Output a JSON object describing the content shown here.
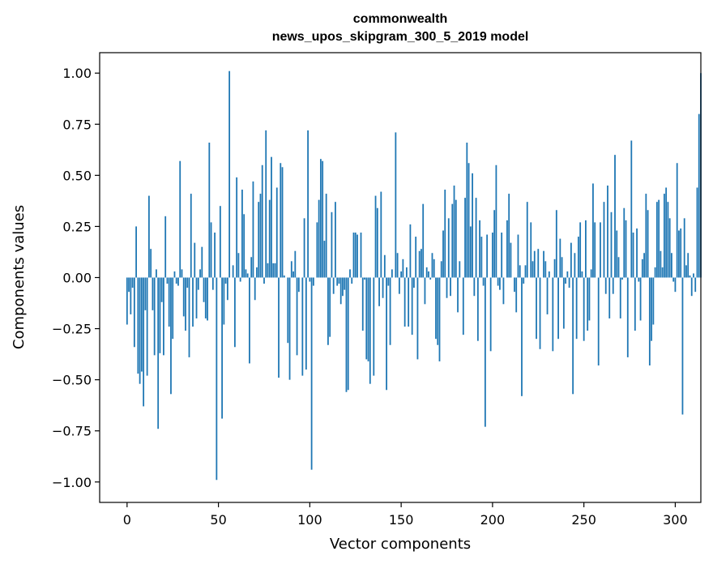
{
  "chart_data": {
    "type": "bar",
    "title_line1": "commonwealth",
    "title_line2": "news_upos_skipgram_300_5_2019 model",
    "xlabel": "Vector components",
    "ylabel": "Components values",
    "xlim": [
      -15,
      314
    ],
    "ylim": [
      -1.1,
      1.1
    ],
    "xticks": [
      0,
      50,
      100,
      150,
      200,
      250,
      300
    ],
    "yticks": [
      -1.0,
      -0.75,
      -0.5,
      -0.25,
      0.0,
      0.25,
      0.5,
      0.75,
      1.0
    ],
    "ytick_labels": [
      "−1.00",
      "−0.75",
      "−0.50",
      "−0.25",
      "0.00",
      "0.25",
      "0.50",
      "0.75",
      "1.00"
    ],
    "xtick_labels": [
      "0",
      "50",
      "100",
      "150",
      "200",
      "250",
      "300"
    ],
    "bar_color": "#1f77b4",
    "values": [
      -0.23,
      -0.07,
      -0.18,
      -0.05,
      -0.34,
      0.25,
      -0.47,
      -0.52,
      -0.46,
      -0.63,
      -0.16,
      -0.48,
      0.4,
      0.14,
      -0.16,
      -0.38,
      0.04,
      -0.74,
      -0.37,
      -0.12,
      -0.38,
      0.3,
      -0.03,
      -0.24,
      -0.57,
      -0.3,
      0.03,
      -0.03,
      -0.04,
      0.57,
      0.04,
      -0.19,
      -0.26,
      -0.05,
      -0.39,
      0.41,
      -0.24,
      0.17,
      -0.2,
      -0.06,
      0.04,
      0.15,
      -0.12,
      -0.2,
      -0.21,
      0.66,
      0.27,
      -0.06,
      0.22,
      -0.99,
      0.0,
      0.35,
      -0.69,
      -0.23,
      -0.03,
      -0.11,
      1.01,
      0.0,
      0.06,
      -0.34,
      0.49,
      0.12,
      -0.02,
      0.43,
      0.31,
      0.04,
      0.02,
      -0.42,
      0.1,
      0.47,
      -0.11,
      0.05,
      0.37,
      0.41,
      0.55,
      -0.03,
      0.72,
      0.07,
      0.38,
      0.59,
      0.07,
      0.07,
      0.44,
      -0.49,
      0.56,
      0.54,
      0.01,
      0.0,
      -0.32,
      -0.5,
      0.08,
      0.03,
      0.13,
      -0.38,
      -0.07,
      0.0,
      -0.48,
      0.29,
      -0.45,
      0.72,
      -0.02,
      -0.94,
      -0.04,
      0.0,
      0.27,
      0.38,
      0.58,
      0.57,
      0.18,
      0.41,
      -0.33,
      -0.29,
      0.32,
      -0.08,
      0.37,
      -0.04,
      -0.03,
      -0.13,
      -0.09,
      -0.06,
      -0.56,
      -0.55,
      0.04,
      -0.03,
      0.22,
      0.22,
      0.21,
      0.0,
      0.22,
      -0.26,
      -0.01,
      -0.4,
      -0.41,
      -0.52,
      0.0,
      -0.48,
      0.4,
      0.34,
      -0.14,
      0.42,
      -0.1,
      0.11,
      -0.55,
      -0.04,
      -0.33,
      0.04,
      0.0,
      0.71,
      0.12,
      -0.08,
      0.03,
      0.09,
      -0.24,
      0.05,
      -0.24,
      0.26,
      -0.28,
      -0.05,
      0.2,
      -0.4,
      0.13,
      0.14,
      0.36,
      -0.13,
      0.05,
      0.03,
      -0.01,
      0.12,
      0.09,
      -0.3,
      -0.33,
      -0.41,
      0.08,
      0.23,
      0.43,
      -0.1,
      0.29,
      -0.09,
      0.36,
      0.45,
      0.38,
      -0.17,
      0.08,
      0.0,
      -0.28,
      0.39,
      0.66,
      0.56,
      0.25,
      0.51,
      -0.09,
      0.39,
      -0.31,
      0.28,
      0.2,
      -0.04,
      -0.73,
      0.21,
      0.0,
      -0.36,
      0.22,
      0.33,
      0.55,
      -0.04,
      -0.06,
      0.22,
      -0.13,
      0.0,
      0.28,
      0.41,
      0.17,
      0.0,
      -0.07,
      -0.17,
      0.21,
      0.06,
      -0.58,
      -0.03,
      0.06,
      0.37,
      0.0,
      0.27,
      0.08,
      0.13,
      -0.3,
      0.14,
      -0.35,
      0.0,
      0.13,
      0.08,
      -0.18,
      0.03,
      0.0,
      -0.36,
      0.09,
      0.33,
      -0.3,
      0.19,
      0.1,
      -0.25,
      -0.03,
      0.03,
      -0.05,
      0.17,
      -0.57,
      0.12,
      -0.3,
      0.2,
      0.27,
      0.03,
      -0.31,
      0.28,
      -0.26,
      -0.21,
      0.04,
      0.46,
      0.27,
      0.0,
      -0.43,
      0.27,
      0.0,
      0.37,
      -0.08,
      0.45,
      -0.2,
      0.32,
      -0.08,
      0.6,
      0.23,
      0.1,
      -0.2,
      -0.01,
      0.34,
      0.28,
      -0.39,
      0.0,
      0.67,
      0.22,
      -0.26,
      0.24,
      -0.02,
      -0.21,
      0.09,
      0.12,
      0.41,
      0.33,
      -0.43,
      -0.31,
      -0.23,
      0.05,
      0.37,
      0.38,
      0.13,
      0.05,
      0.41,
      0.44,
      0.37,
      0.29,
      0.12,
      -0.02,
      -0.07,
      0.56,
      0.23,
      0.24,
      -0.67,
      0.29,
      0.06,
      0.12,
      0.01,
      -0.09,
      0.02,
      -0.07,
      0.44,
      0.8,
      1.0
    ]
  }
}
